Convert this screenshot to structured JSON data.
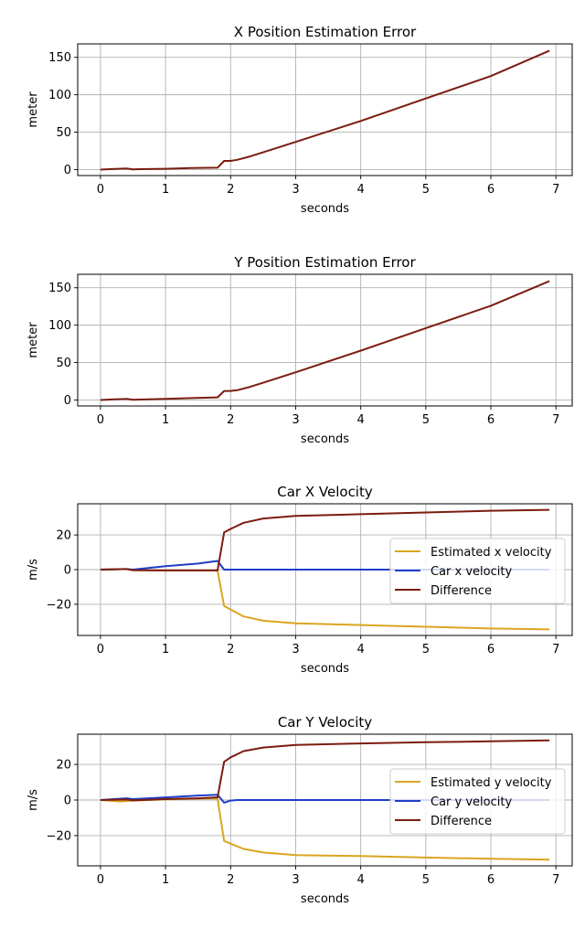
{
  "colors": {
    "estimated": "#DAA520",
    "car": "#1F3DC8",
    "difference": "#7B1C10",
    "grid": "#b0b0b0",
    "axis": "#000000"
  },
  "chart_data": [
    {
      "type": "line",
      "title": "X Position Estimation Error",
      "xlabel": "seconds",
      "ylabel": "meter",
      "xlim": [
        -0.35,
        7.25
      ],
      "ylim": [
        -8,
        168
      ],
      "xticks": [
        0,
        1,
        2,
        3,
        4,
        5,
        6,
        7
      ],
      "yticks": [
        0,
        50,
        100,
        150
      ],
      "grid": true,
      "legend": null,
      "series": [
        {
          "color_key": "difference",
          "x": [
            0,
            0.4,
            0.5,
            0.6,
            1.0,
            1.4,
            1.8,
            1.9,
            2.0,
            2.1,
            2.3,
            2.5,
            3.0,
            4.0,
            5.0,
            6.0,
            6.9
          ],
          "y": [
            0,
            1.5,
            0.3,
            0.5,
            1,
            2,
            2.5,
            11.5,
            11.5,
            13,
            17.5,
            23,
            37,
            65,
            95,
            125,
            159
          ]
        }
      ]
    },
    {
      "type": "line",
      "title": "Y Position Estimation Error",
      "xlabel": "seconds",
      "ylabel": "meter",
      "xlim": [
        -0.35,
        7.25
      ],
      "ylim": [
        -8,
        168
      ],
      "xticks": [
        0,
        1,
        2,
        3,
        4,
        5,
        6,
        7
      ],
      "yticks": [
        0,
        50,
        100,
        150
      ],
      "grid": true,
      "legend": null,
      "series": [
        {
          "color_key": "difference",
          "x": [
            0,
            0.4,
            0.5,
            0.6,
            1.0,
            1.4,
            1.8,
            1.9,
            2.0,
            2.1,
            2.3,
            2.5,
            3.0,
            4.0,
            5.0,
            6.0,
            6.9
          ],
          "y": [
            0,
            1.5,
            0.3,
            0.5,
            1.5,
            2.5,
            3.5,
            12,
            12,
            13,
            17.5,
            23,
            37,
            66,
            96,
            126,
            159
          ]
        }
      ]
    },
    {
      "type": "line",
      "title": "Car X Velocity",
      "xlabel": "seconds",
      "ylabel": "m/s",
      "xlim": [
        -0.35,
        7.25
      ],
      "ylim": [
        -38,
        38
      ],
      "xticks": [
        0,
        1,
        2,
        3,
        4,
        5,
        6,
        7
      ],
      "yticks": [
        -20,
        0,
        20
      ],
      "grid": true,
      "legend": "right",
      "series": [
        {
          "name": "Estimated x velocity",
          "color_key": "estimated",
          "x": [
            0,
            0.4,
            0.5,
            1.0,
            1.5,
            1.8,
            1.9,
            2.0,
            2.2,
            2.5,
            3.0,
            4.0,
            5.0,
            6.0,
            6.9
          ],
          "y": [
            0,
            0.3,
            -0.3,
            -0.5,
            -0.5,
            -0.5,
            -21,
            -23,
            -27,
            -29.5,
            -31,
            -32,
            -33,
            -34,
            -34.5
          ]
        },
        {
          "name": "Car x velocity",
          "color_key": "car",
          "x": [
            0,
            0.4,
            0.5,
            1.0,
            1.5,
            1.8,
            1.9,
            2.0,
            3.0,
            4.0,
            5.0,
            6.0,
            6.9
          ],
          "y": [
            0,
            0.3,
            0,
            2,
            3.5,
            5,
            0,
            0,
            0,
            0,
            0,
            0,
            0
          ]
        },
        {
          "name": "Difference",
          "color_key": "difference",
          "x": [
            0,
            0.4,
            0.5,
            1.0,
            1.5,
            1.8,
            1.9,
            2.0,
            2.2,
            2.5,
            3.0,
            4.0,
            5.0,
            6.0,
            6.9
          ],
          "y": [
            0,
            0.3,
            -0.3,
            -0.5,
            -0.5,
            -0.5,
            21.5,
            23.5,
            27,
            29.5,
            31,
            32,
            33,
            34,
            34.5
          ]
        }
      ]
    },
    {
      "type": "line",
      "title": "Car Y Velocity",
      "xlabel": "seconds",
      "ylabel": "m/s",
      "xlim": [
        -0.35,
        7.25
      ],
      "ylim": [
        -37,
        37
      ],
      "xticks": [
        0,
        1,
        2,
        3,
        4,
        5,
        6,
        7
      ],
      "yticks": [
        -20,
        0,
        20
      ],
      "grid": true,
      "legend": "right",
      "series": [
        {
          "name": "Estimated y velocity",
          "color_key": "estimated",
          "x": [
            0,
            0.3,
            0.5,
            1.0,
            1.5,
            1.8,
            1.9,
            2.0,
            2.2,
            2.5,
            3.0,
            4.0,
            5.0,
            6.0,
            6.9
          ],
          "y": [
            0,
            -0.8,
            -0.3,
            0.3,
            0.8,
            0.8,
            -23,
            -24.5,
            -27.5,
            -29.5,
            -31,
            -31.5,
            -32.3,
            -33,
            -33.5
          ]
        },
        {
          "name": "Car y velocity",
          "color_key": "car",
          "x": [
            0,
            0.4,
            0.5,
            1.0,
            1.5,
            1.8,
            1.9,
            2.0,
            2.1,
            3.0,
            4.0,
            5.0,
            6.0,
            6.9
          ],
          "y": [
            0,
            1,
            0.5,
            1.5,
            2.5,
            3,
            -1.5,
            -0.3,
            0,
            0,
            0,
            0,
            0,
            0
          ]
        },
        {
          "name": "Difference",
          "color_key": "difference",
          "x": [
            0,
            0.4,
            0.5,
            1.0,
            1.5,
            1.8,
            1.9,
            2.0,
            2.2,
            2.5,
            3.0,
            4.0,
            5.0,
            6.0,
            6.9
          ],
          "y": [
            0,
            0.3,
            -0.2,
            0.5,
            1,
            1.5,
            21.5,
            24,
            27.5,
            29.5,
            31,
            31.8,
            32.5,
            33,
            33.5
          ]
        }
      ]
    }
  ]
}
